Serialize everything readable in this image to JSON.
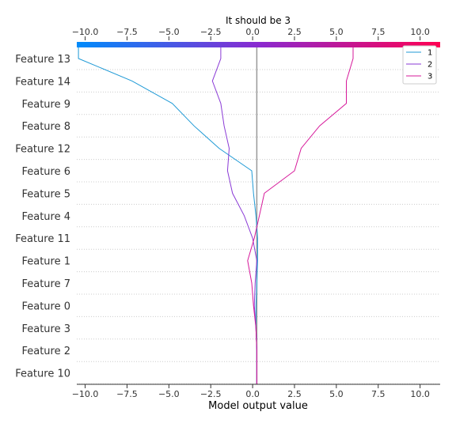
{
  "chart_data": {
    "type": "line",
    "title": "It should be 3",
    "xlabel": "Model output value",
    "ylabel": "",
    "xlim": [
      -10.5,
      11.2
    ],
    "xticks": [
      -10.0,
      -7.5,
      -5.0,
      -2.5,
      0.0,
      2.5,
      5.0,
      7.5,
      10.0
    ],
    "xtick_labels": [
      "−10.0",
      "−7.5",
      "−5.0",
      "−2.5",
      "0.0",
      "2.5",
      "5.0",
      "7.5",
      "10.0"
    ],
    "base_value": 0.25,
    "grid": "dotted horizontal",
    "legend_position": "top-right",
    "colorbar_colors": [
      "#008bfb",
      "#ff0052"
    ],
    "features": [
      "Feature 13",
      "Feature 14",
      "Feature 9",
      "Feature 8",
      "Feature 12",
      "Feature 6",
      "Feature 5",
      "Feature 4",
      "Feature 11",
      "Feature 1",
      "Feature 7",
      "Feature 0",
      "Feature 3",
      "Feature 2",
      "Feature 10"
    ],
    "series": [
      {
        "name": "1",
        "color": "#1f9ad6",
        "values": [
          -10.4,
          -7.2,
          -4.8,
          -3.5,
          -2.0,
          -0.05,
          0.05,
          0.2,
          0.3,
          0.3,
          0.25,
          0.2,
          0.2,
          0.25,
          0.25
        ]
      },
      {
        "name": "2",
        "color": "#8a3ad6",
        "values": [
          -1.9,
          -2.4,
          -1.9,
          -1.7,
          -1.4,
          -1.5,
          -1.2,
          -0.5,
          0.0,
          0.25,
          0.15,
          0.1,
          0.2,
          0.25,
          0.25
        ]
      },
      {
        "name": "3",
        "color": "#d6189a",
        "values": [
          6.0,
          5.6,
          5.6,
          4.0,
          2.9,
          2.5,
          0.7,
          0.4,
          0.1,
          -0.3,
          -0.05,
          0.05,
          0.2,
          0.25,
          0.25
        ]
      }
    ]
  }
}
